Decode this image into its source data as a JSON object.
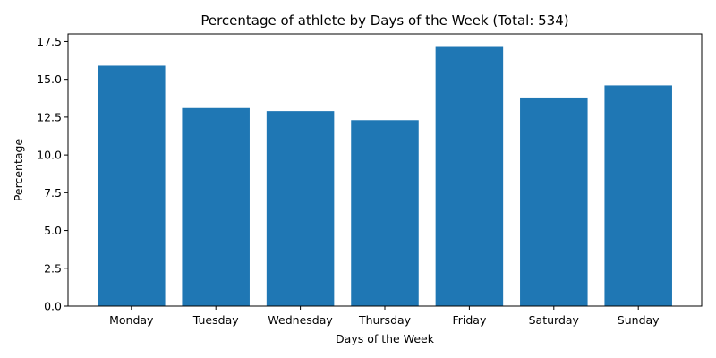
{
  "chart_data": {
    "type": "bar",
    "title": "Percentage of athlete by Days of the Week (Total: 534)",
    "xlabel": "Days of the Week",
    "ylabel": "Percentage",
    "categories": [
      "Monday",
      "Tuesday",
      "Wednesday",
      "Thursday",
      "Friday",
      "Saturday",
      "Sunday"
    ],
    "values": [
      15.9,
      13.1,
      12.9,
      12.3,
      17.2,
      13.8,
      14.6
    ],
    "ylim": [
      0,
      18.0
    ],
    "yticks": [
      "0.0",
      "2.5",
      "5.0",
      "7.5",
      "10.0",
      "12.5",
      "15.0",
      "17.5"
    ],
    "grid": false,
    "colors": {
      "bar": "#1f77b4"
    }
  }
}
